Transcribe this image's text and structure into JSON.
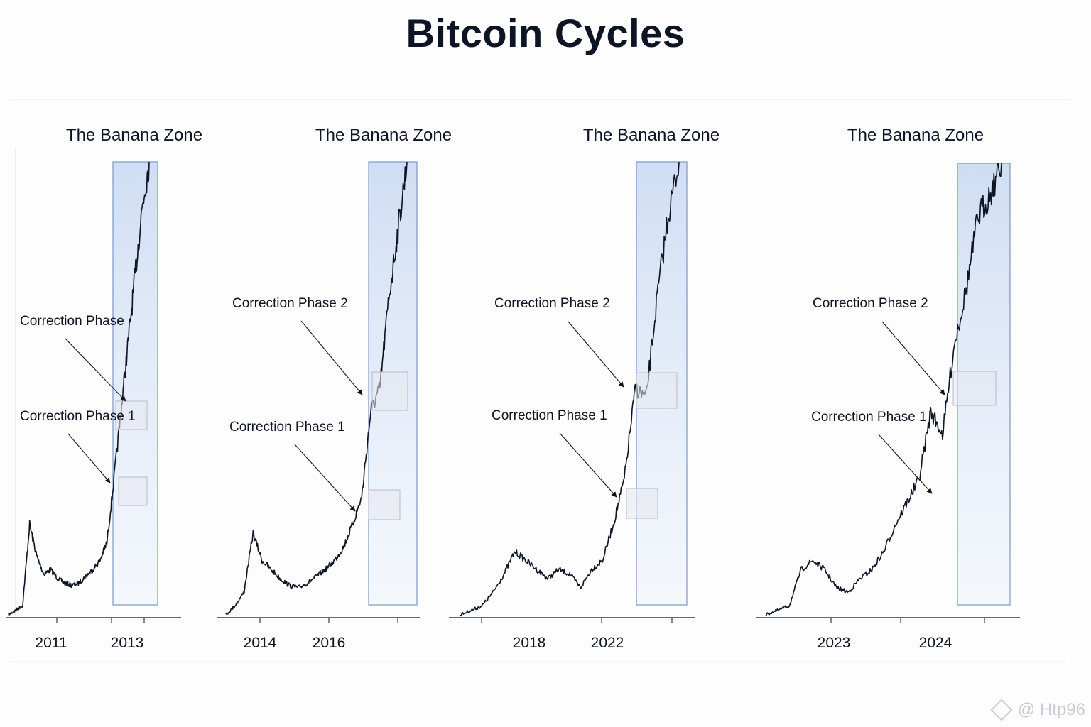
{
  "title": "Bitcoin Cycles",
  "watermark": "@ Htp96",
  "colors": {
    "price_line": "#0d1424",
    "zone_fill": "#dbe7f7",
    "zone_stroke": "#7e97c4",
    "axis": "#333a46"
  },
  "chart_data": [
    {
      "type": "line",
      "title": "The Banana Zone",
      "x_ticks": [
        "2011",
        "2013"
      ],
      "y_scale": "relative price (unlabeled)",
      "series": [
        {
          "name": "",
          "values": [
            0,
            0.01,
            0.02,
            0.2,
            0.13,
            0.09,
            0.1,
            0.08,
            0.07,
            0.065,
            0.07,
            0.085,
            0.1,
            0.12,
            0.16,
            0.3,
            0.45,
            0.6,
            0.75,
            0.9,
            1.0
          ]
        }
      ],
      "highlight": "The Banana Zone",
      "annotations": [
        {
          "text": "Correction Phase",
          "at_index": 14
        },
        {
          "text": "Correction Phase 1",
          "at_index": 13
        }
      ]
    },
    {
      "type": "line",
      "title": "The Banana Zone",
      "x_ticks": [
        "2014",
        "2016"
      ],
      "y_scale": "relative price (unlabeled)",
      "series": [
        {
          "name": "",
          "values": [
            0,
            0.02,
            0.05,
            0.18,
            0.12,
            0.1,
            0.08,
            0.065,
            0.06,
            0.07,
            0.085,
            0.1,
            0.12,
            0.15,
            0.2,
            0.26,
            0.45,
            0.5,
            0.7,
            0.85,
            1.0
          ]
        }
      ],
      "highlight": "The Banana Zone",
      "annotations": [
        {
          "text": "Correction Phase 2",
          "at_index": 16
        },
        {
          "text": "Correction Phase 1",
          "at_index": 15
        }
      ]
    },
    {
      "type": "line",
      "title": "The Banana Zone",
      "x_ticks": [
        "2018",
        "2022"
      ],
      "y_scale": "relative price (unlabeled)",
      "series": [
        {
          "name": "",
          "values": [
            0,
            0.01,
            0.02,
            0.05,
            0.09,
            0.14,
            0.12,
            0.1,
            0.08,
            0.1,
            0.09,
            0.06,
            0.1,
            0.12,
            0.2,
            0.3,
            0.5,
            0.48,
            0.7,
            0.88,
            1.0
          ]
        }
      ],
      "highlight": "The Banana Zone",
      "annotations": [
        {
          "text": "Correction Phase 2",
          "at_index": 16
        },
        {
          "text": "Correction Phase 1",
          "at_index": 15
        }
      ]
    },
    {
      "type": "line",
      "title": "The Banana Zone",
      "x_ticks": [
        "2023",
        "2024"
      ],
      "y_scale": "relative price (unlabeled)",
      "series": [
        {
          "name": "",
          "values": [
            0,
            0.01,
            0.02,
            0.1,
            0.12,
            0.1,
            0.06,
            0.05,
            0.08,
            0.1,
            0.14,
            0.2,
            0.25,
            0.3,
            0.45,
            0.4,
            0.6,
            0.72,
            0.88,
            0.93,
            1.0
          ]
        }
      ],
      "highlight": "The Banana Zone",
      "annotations": [
        {
          "text": "Correction Phase 2",
          "at_index": 15
        },
        {
          "text": "Correction Phase 1",
          "at_index": 14
        }
      ]
    }
  ]
}
